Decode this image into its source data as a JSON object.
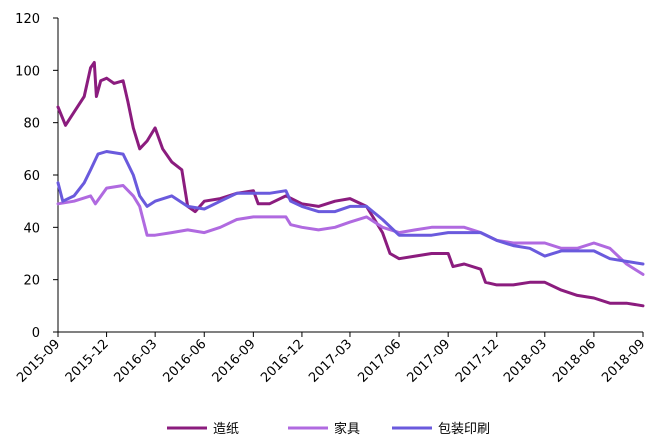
{
  "chart_data": {
    "type": "line",
    "title": "",
    "xlabel": "",
    "ylabel": "",
    "ylim": [
      0,
      120
    ],
    "yticks": [
      0,
      20,
      40,
      60,
      80,
      100,
      120
    ],
    "xticks": [
      "2015-09",
      "2015-12",
      "2016-03",
      "2016-06",
      "2016-09",
      "2016-12",
      "2017-03",
      "2017-06",
      "2017-09",
      "2017-12",
      "2018-03",
      "2018-06",
      "2018-09"
    ],
    "grid": false,
    "legend_position": "bottom",
    "series": [
      {
        "name": "造纸",
        "color": "#8B1C7E",
        "points": [
          [
            "2015-09",
            86
          ],
          [
            "2015-09-15",
            79
          ],
          [
            "2015-10",
            84
          ],
          [
            "2015-10-20",
            90
          ],
          [
            "2015-11",
            101
          ],
          [
            "2015-11-08",
            103
          ],
          [
            "2015-11-12",
            90
          ],
          [
            "2015-11-20",
            96
          ],
          [
            "2015-12",
            97
          ],
          [
            "2015-12-15",
            95
          ],
          [
            "2016-01",
            96
          ],
          [
            "2016-01-10",
            88
          ],
          [
            "2016-01-20",
            78
          ],
          [
            "2016-02",
            70
          ],
          [
            "2016-02-15",
            73
          ],
          [
            "2016-03",
            78
          ],
          [
            "2016-03-15",
            70
          ],
          [
            "2016-04",
            65
          ],
          [
            "2016-04-20",
            62
          ],
          [
            "2016-05",
            48
          ],
          [
            "2016-05-15",
            46
          ],
          [
            "2016-06",
            50
          ],
          [
            "2016-07",
            51
          ],
          [
            "2016-08",
            53
          ],
          [
            "2016-09",
            54
          ],
          [
            "2016-09-10",
            49
          ],
          [
            "2016-10",
            49
          ],
          [
            "2016-11",
            52
          ],
          [
            "2016-12",
            49
          ],
          [
            "2017-01",
            48
          ],
          [
            "2017-02",
            50
          ],
          [
            "2017-03",
            51
          ],
          [
            "2017-04",
            48
          ],
          [
            "2017-05",
            38
          ],
          [
            "2017-05-15",
            30
          ],
          [
            "2017-06",
            28
          ],
          [
            "2017-07",
            29
          ],
          [
            "2017-08",
            30
          ],
          [
            "2017-09",
            30
          ],
          [
            "2017-09-10",
            25
          ],
          [
            "2017-10",
            26
          ],
          [
            "2017-11",
            24
          ],
          [
            "2017-11-10",
            19
          ],
          [
            "2017-12",
            18
          ],
          [
            "2018-01",
            18
          ],
          [
            "2018-02",
            19
          ],
          [
            "2018-03",
            19
          ],
          [
            "2018-04",
            16
          ],
          [
            "2018-05",
            14
          ],
          [
            "2018-06",
            13
          ],
          [
            "2018-07",
            11
          ],
          [
            "2018-08",
            11
          ],
          [
            "2018-09",
            10
          ]
        ]
      },
      {
        "name": "家具",
        "color": "#B06AE0",
        "points": [
          [
            "2015-09",
            49
          ],
          [
            "2015-10",
            50
          ],
          [
            "2015-11",
            52
          ],
          [
            "2015-11-10",
            49
          ],
          [
            "2015-12",
            55
          ],
          [
            "2016-01",
            56
          ],
          [
            "2016-01-20",
            52
          ],
          [
            "2016-02",
            48
          ],
          [
            "2016-02-15",
            37
          ],
          [
            "2016-03",
            37
          ],
          [
            "2016-04",
            38
          ],
          [
            "2016-05",
            39
          ],
          [
            "2016-06",
            38
          ],
          [
            "2016-07",
            40
          ],
          [
            "2016-08",
            43
          ],
          [
            "2016-09",
            44
          ],
          [
            "2016-10",
            44
          ],
          [
            "2016-11",
            44
          ],
          [
            "2016-11-10",
            41
          ],
          [
            "2016-12",
            40
          ],
          [
            "2017-01",
            39
          ],
          [
            "2017-02",
            40
          ],
          [
            "2017-03",
            42
          ],
          [
            "2017-04",
            44
          ],
          [
            "2017-05",
            40
          ],
          [
            "2017-06",
            38
          ],
          [
            "2017-07",
            39
          ],
          [
            "2017-08",
            40
          ],
          [
            "2017-09",
            40
          ],
          [
            "2017-10",
            40
          ],
          [
            "2017-11",
            38
          ],
          [
            "2017-12",
            35
          ],
          [
            "2018-01",
            34
          ],
          [
            "2018-02",
            34
          ],
          [
            "2018-03",
            34
          ],
          [
            "2018-04",
            32
          ],
          [
            "2018-05",
            32
          ],
          [
            "2018-06",
            34
          ],
          [
            "2018-07",
            32
          ],
          [
            "2018-08",
            26
          ],
          [
            "2018-09",
            22
          ]
        ]
      },
      {
        "name": "包装印刷",
        "color": "#6A5ADD",
        "points": [
          [
            "2015-09",
            57
          ],
          [
            "2015-09-10",
            50
          ],
          [
            "2015-10",
            52
          ],
          [
            "2015-10-20",
            57
          ],
          [
            "2015-11",
            62
          ],
          [
            "2015-11-15",
            68
          ],
          [
            "2015-12",
            69
          ],
          [
            "2016-01",
            68
          ],
          [
            "2016-01-20",
            60
          ],
          [
            "2016-02",
            52
          ],
          [
            "2016-02-15",
            48
          ],
          [
            "2016-03",
            50
          ],
          [
            "2016-04",
            52
          ],
          [
            "2016-05",
            48
          ],
          [
            "2016-06",
            47
          ],
          [
            "2016-07",
            50
          ],
          [
            "2016-08",
            53
          ],
          [
            "2016-09",
            53
          ],
          [
            "2016-10",
            53
          ],
          [
            "2016-11",
            54
          ],
          [
            "2016-11-10",
            50
          ],
          [
            "2016-12",
            48
          ],
          [
            "2017-01",
            46
          ],
          [
            "2017-02",
            46
          ],
          [
            "2017-03",
            48
          ],
          [
            "2017-04",
            48
          ],
          [
            "2017-05",
            43
          ],
          [
            "2017-06",
            37
          ],
          [
            "2017-07",
            37
          ],
          [
            "2017-08",
            37
          ],
          [
            "2017-09",
            38
          ],
          [
            "2017-10",
            38
          ],
          [
            "2017-11",
            38
          ],
          [
            "2017-12",
            35
          ],
          [
            "2018-01",
            33
          ],
          [
            "2018-02",
            32
          ],
          [
            "2018-03",
            29
          ],
          [
            "2018-04",
            31
          ],
          [
            "2018-05",
            31
          ],
          [
            "2018-06",
            31
          ],
          [
            "2018-07",
            28
          ],
          [
            "2018-08",
            27
          ],
          [
            "2018-09",
            26
          ]
        ]
      }
    ]
  }
}
